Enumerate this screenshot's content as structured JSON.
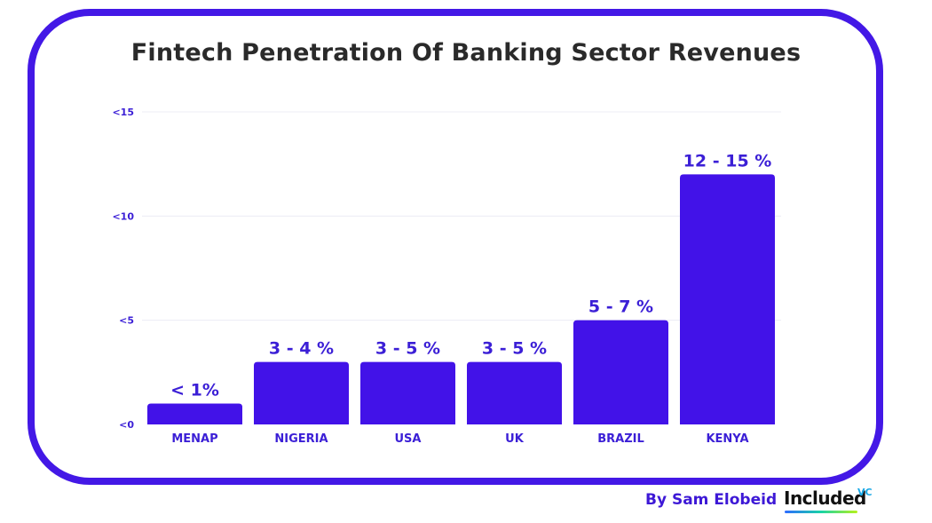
{
  "chart_data": {
    "type": "bar",
    "title": "Fintech Penetration Of Banking Sector Revenues",
    "categories": [
      "MENAP",
      "NIGERIA",
      "USA",
      "UK",
      "BRAZIL",
      "KENYA"
    ],
    "values": [
      1,
      3,
      3,
      3,
      5,
      12
    ],
    "data_labels": [
      "< 1%",
      "3 - 4 %",
      "3 - 5 %",
      "3 - 5 %",
      "5 - 7 %",
      "12 - 15 %"
    ],
    "yticks": [
      {
        "value": 0,
        "label": "<0"
      },
      {
        "value": 5,
        "label": "<5"
      },
      {
        "value": 10,
        "label": "<10"
      },
      {
        "value": 15,
        "label": "<15"
      }
    ],
    "ylim": [
      0,
      15
    ],
    "grid": true,
    "bar_color": "#4212e8"
  },
  "footer": {
    "credit": "By Sam Elobeid",
    "brand": "Included",
    "brand_sup": "VC"
  },
  "colors": {
    "frame": "#4318e6",
    "label": "#3b1fd6"
  }
}
